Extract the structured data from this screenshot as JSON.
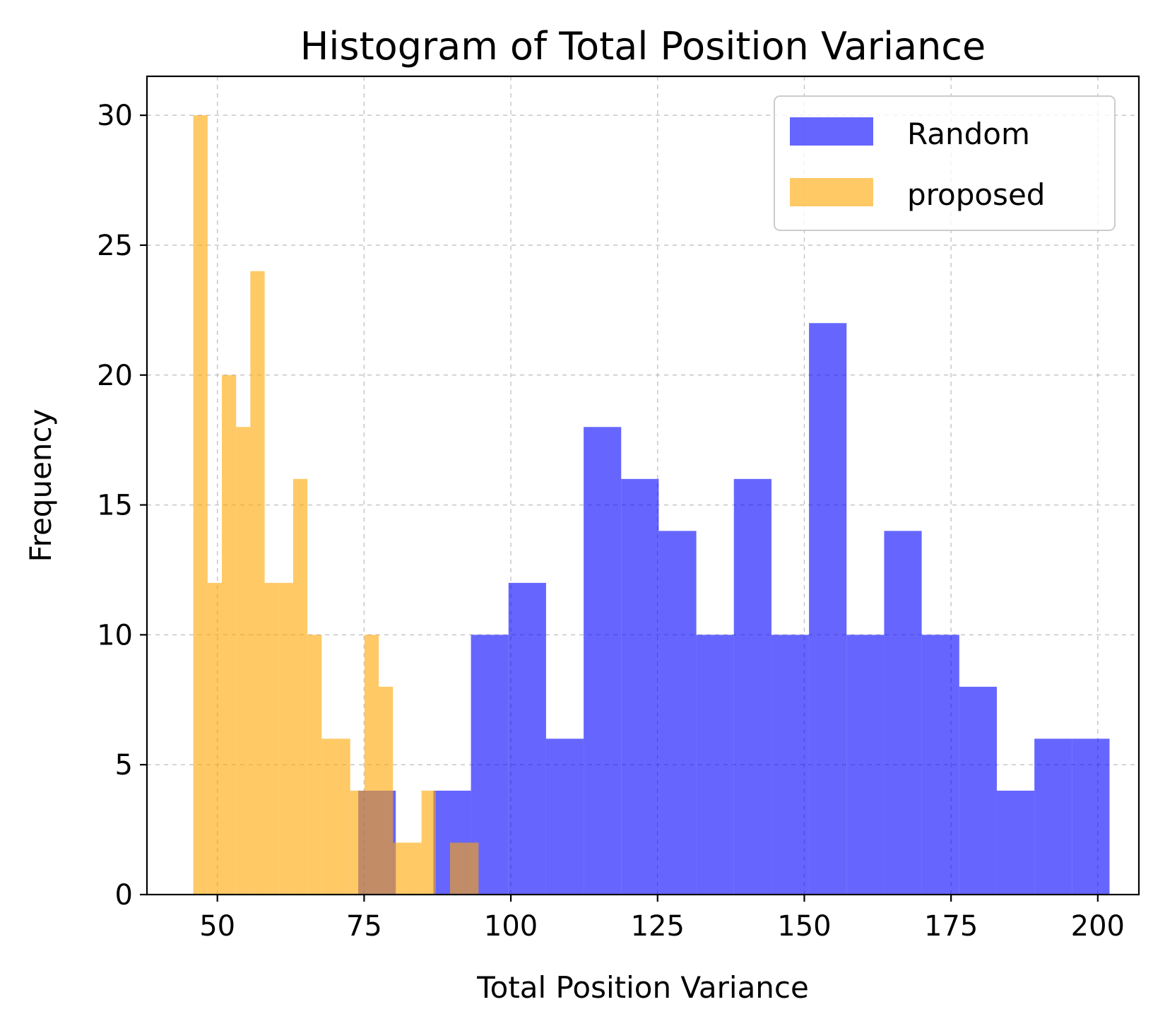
{
  "chart_data": {
    "type": "bar",
    "title": "Histogram of Total Position Variance",
    "xlabel": "Total Position Variance",
    "ylabel": "Frequency",
    "xlim": [
      38,
      207
    ],
    "ylim": [
      0,
      31.5
    ],
    "xticks": [
      50,
      75,
      100,
      125,
      150,
      175,
      200
    ],
    "yticks": [
      0,
      5,
      10,
      15,
      20,
      25,
      30
    ],
    "grid": true,
    "legend_position": "top-right",
    "series": [
      {
        "name": "Random",
        "color": "#0000ff",
        "opacity": 0.6,
        "bin_width": 6.4,
        "bins": [
          {
            "start": 74.0,
            "value": 4
          },
          {
            "start": 80.4,
            "value": 0
          },
          {
            "start": 86.8,
            "value": 4
          },
          {
            "start": 93.2,
            "value": 10
          },
          {
            "start": 99.6,
            "value": 12
          },
          {
            "start": 106.0,
            "value": 6
          },
          {
            "start": 112.4,
            "value": 18
          },
          {
            "start": 118.8,
            "value": 16
          },
          {
            "start": 125.2,
            "value": 14
          },
          {
            "start": 131.6,
            "value": 10
          },
          {
            "start": 138.0,
            "value": 16
          },
          {
            "start": 144.4,
            "value": 10
          },
          {
            "start": 150.8,
            "value": 22
          },
          {
            "start": 157.2,
            "value": 10
          },
          {
            "start": 163.6,
            "value": 14
          },
          {
            "start": 170.0,
            "value": 10
          },
          {
            "start": 176.4,
            "value": 8
          },
          {
            "start": 182.8,
            "value": 4
          },
          {
            "start": 189.2,
            "value": 6
          },
          {
            "start": 195.6,
            "value": 6
          }
        ]
      },
      {
        "name": "proposed",
        "color": "#ffa500",
        "opacity": 0.6,
        "bin_width": 2.43,
        "bins": [
          {
            "start": 45.9,
            "value": 30
          },
          {
            "start": 48.33,
            "value": 12
          },
          {
            "start": 50.76,
            "value": 20
          },
          {
            "start": 53.19,
            "value": 18
          },
          {
            "start": 55.62,
            "value": 24
          },
          {
            "start": 58.05,
            "value": 12
          },
          {
            "start": 60.48,
            "value": 12
          },
          {
            "start": 62.91,
            "value": 16
          },
          {
            "start": 65.34,
            "value": 10
          },
          {
            "start": 67.77,
            "value": 6
          },
          {
            "start": 70.2,
            "value": 6
          },
          {
            "start": 72.63,
            "value": 4
          },
          {
            "start": 75.06,
            "value": 10
          },
          {
            "start": 77.49,
            "value": 8
          },
          {
            "start": 79.92,
            "value": 2
          },
          {
            "start": 82.35,
            "value": 2
          },
          {
            "start": 84.78,
            "value": 4
          },
          {
            "start": 87.21,
            "value": 0
          },
          {
            "start": 89.64,
            "value": 2
          },
          {
            "start": 92.07,
            "value": 2
          }
        ]
      }
    ]
  }
}
